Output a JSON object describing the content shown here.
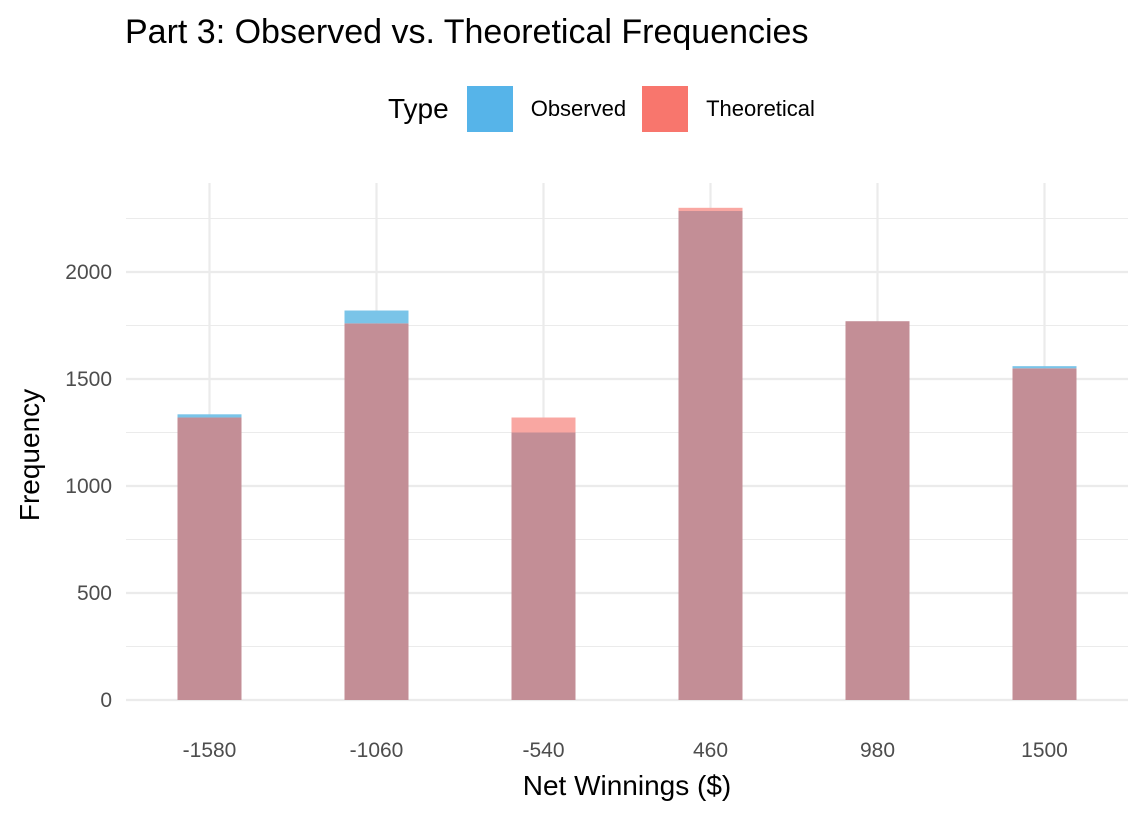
{
  "chart_data": {
    "type": "bar",
    "title": "Part 3: Observed vs. Theoretical Frequencies",
    "xlabel": "Net Winnings ($)",
    "ylabel": "Frequency",
    "categories": [
      "-1580",
      "-1060",
      "-540",
      "460",
      "980",
      "1500"
    ],
    "series": [
      {
        "name": "Observed",
        "color": "#56B4E9",
        "values": [
          1335,
          1820,
          1250,
          2285,
          1770,
          1560
        ]
      },
      {
        "name": "Theoretical",
        "color": "#F8766D",
        "values": [
          1320,
          1760,
          1320,
          2300,
          1770,
          1550
        ]
      }
    ],
    "overlay_color": "#C38E96",
    "legend_title": "Type",
    "legend_position": "top",
    "ylim": [
      0,
      2300
    ],
    "yticks": [
      0,
      500,
      1000,
      1500,
      2000
    ],
    "grid": true
  }
}
